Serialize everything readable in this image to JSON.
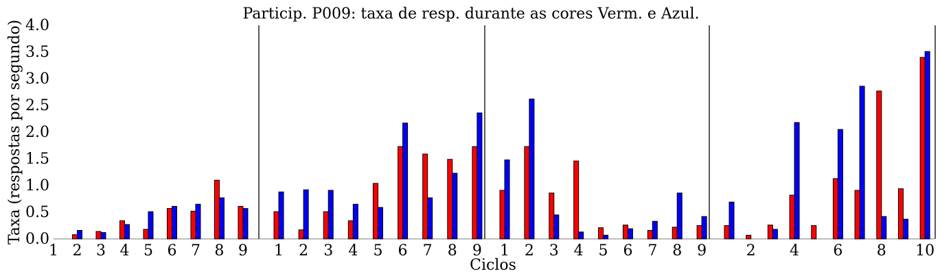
{
  "chart_data": {
    "type": "bar",
    "title": "Particip. P009: taxa de resp. durante as cores Verm. e Azul.",
    "xlabel": "Ciclos",
    "ylabel": "Taxa (respostas por segundo)",
    "ylim": [
      0,
      4.0
    ],
    "yticks": [
      "0.0",
      "0.5",
      "1.0",
      "1.5",
      "2.0",
      "2.5",
      "3.0",
      "3.5",
      "4.0"
    ],
    "colors": {
      "red": "#ff0000",
      "blue": "#0000ff"
    },
    "panels": [
      {
        "ticks": [
          "1",
          "2",
          "3",
          "4",
          "5",
          "6",
          "7",
          "8",
          "9"
        ],
        "red": [
          0.0,
          0.08,
          0.14,
          0.34,
          0.18,
          0.57,
          0.52,
          1.1,
          0.61
        ],
        "blue": [
          0.0,
          0.16,
          0.12,
          0.27,
          0.51,
          0.61,
          0.65,
          0.77,
          0.57
        ]
      },
      {
        "ticks": [
          "1",
          "2",
          "3",
          "4",
          "5",
          "6",
          "7",
          "8",
          "9"
        ],
        "red": [
          0.51,
          0.17,
          0.51,
          0.34,
          1.04,
          1.73,
          1.59,
          1.49,
          1.73
        ],
        "blue": [
          0.88,
          0.92,
          0.91,
          0.65,
          0.59,
          2.17,
          0.77,
          1.23,
          2.36
        ]
      },
      {
        "ticks": [
          "1",
          "2",
          "3",
          "4",
          "5",
          "6",
          "7",
          "8",
          "9"
        ],
        "red": [
          0.91,
          1.73,
          0.86,
          1.46,
          0.21,
          0.26,
          0.16,
          0.22,
          0.25
        ],
        "blue": [
          1.48,
          2.62,
          0.45,
          0.13,
          0.07,
          0.19,
          0.33,
          0.86,
          0.42
        ]
      },
      {
        "ticks": [
          "2",
          "4",
          "6",
          "8",
          "10"
        ],
        "tick_positions": [
          2,
          4,
          6,
          8,
          10
        ],
        "red": [
          0.25,
          0.07,
          0.26,
          0.82,
          0.25,
          1.13,
          0.91,
          2.77,
          0.94,
          3.4
        ],
        "blue": [
          0.69,
          0.0,
          0.18,
          2.18,
          0.0,
          2.05,
          2.86,
          0.42,
          0.37,
          3.51
        ]
      }
    ]
  }
}
